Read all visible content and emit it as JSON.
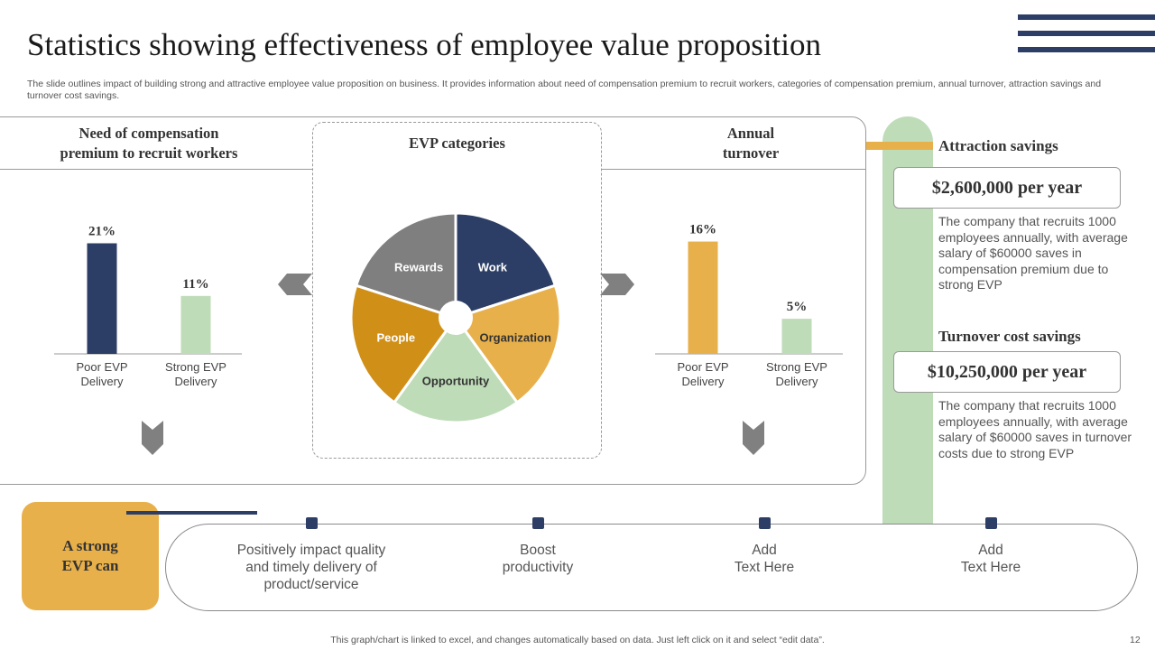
{
  "slide": {
    "title": "Statistics showing effectiveness of employee value proposition",
    "subtitle": "The slide outlines impact of building strong and attractive employee value proposition on business. It provides information about need of compensation premium to recruit workers, categories of compensation premium, annual turnover, attraction savings and turnover cost savings.",
    "footer": "This graph/chart is linked to excel, and changes automatically based on data. Just left click on it and select “edit data”.",
    "page_number": "12"
  },
  "sections": {
    "compensation_title_line1": "Need of compensation",
    "compensation_title_line2": "premium to recruit workers",
    "evp_title": "EVP categories",
    "turnover_title_line1": "Annual",
    "turnover_title_line2": "turnover"
  },
  "colors": {
    "navy": "#2c3e66",
    "light_green": "#bfdcb9",
    "orange": "#e8b04a",
    "dark_orange": "#d08f17",
    "grey": "#7f7f7f"
  },
  "chart_data": [
    {
      "type": "bar",
      "title": "Need of compensation premium to recruit workers",
      "categories": [
        [
          "Poor EVP",
          "Delivery"
        ],
        [
          "Strong EVP",
          "Delivery"
        ]
      ],
      "values": [
        21,
        11
      ],
      "labels": [
        "21%",
        "11%"
      ],
      "colors": [
        "#2c3e66",
        "#bfdcb9"
      ],
      "ylim": [
        0,
        24
      ]
    },
    {
      "type": "pie",
      "title": "EVP categories",
      "slices": [
        {
          "label": "Work",
          "value": 20,
          "color": "#2c3e66",
          "text_color": "#ffffff"
        },
        {
          "label": "Organization",
          "value": 20,
          "color": "#e8b04a",
          "text_color": "#333333"
        },
        {
          "label": "Opportunity",
          "value": 20,
          "color": "#bfdcb9",
          "text_color": "#333333"
        },
        {
          "label": "People",
          "value": 20,
          "color": "#d08f17",
          "text_color": "#ffffff"
        },
        {
          "label": "Rewards",
          "value": 20,
          "color": "#7f7f7f",
          "text_color": "#ffffff"
        }
      ]
    },
    {
      "type": "bar",
      "title": "Annual turnover",
      "categories": [
        [
          "Poor EVP",
          "Delivery"
        ],
        [
          "Strong EVP",
          "Delivery"
        ]
      ],
      "values": [
        16,
        5
      ],
      "labels": [
        "16%",
        "5%"
      ],
      "colors": [
        "#e8b04a",
        "#bfdcb9"
      ],
      "ylim": [
        0,
        18
      ]
    }
  ],
  "savings": {
    "attraction": {
      "title": "Attraction savings",
      "value": "$2,600,000 per year",
      "description": "The company that recruits 1000 employees annually, with average salary of $60000 saves in compensation premium due to strong EVP"
    },
    "turnover": {
      "title": "Turnover cost savings",
      "value": "$10,250,000 per year",
      "description": "The company that recruits 1000 employees annually, with average salary of $60000 saves in turnover costs due to strong EVP"
    }
  },
  "evp_can": {
    "label": "A strong\nEVP can",
    "items": [
      "Positively impact quality\nand timely delivery of\nproduct/service",
      "Boost\nproductivity",
      "Add\nText Here",
      "Add\nText Here"
    ]
  }
}
